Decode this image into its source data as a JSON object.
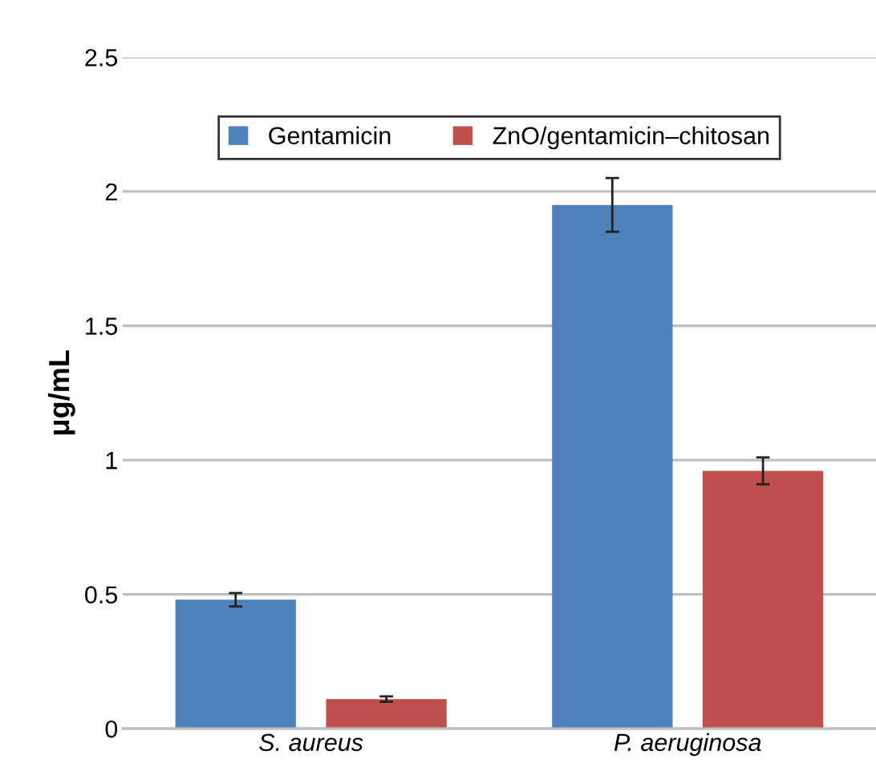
{
  "chart_data": {
    "type": "bar",
    "ylabel": "μg/mL",
    "categories": [
      "S. aureus",
      "P. aeruginosa"
    ],
    "series": [
      {
        "name": "Gentamicin",
        "color": "#4f81bd",
        "values": [
          0.48,
          1.95
        ],
        "errors": [
          0.025,
          0.1
        ]
      },
      {
        "name": "ZnO/gentamicin–chitosan",
        "color": "#c0504d",
        "values": [
          0.11,
          0.96
        ],
        "errors": [
          0.01,
          0.05
        ]
      }
    ],
    "ylim": [
      0,
      2.5
    ],
    "yticks": [
      0,
      0.5,
      1,
      1.5,
      2,
      2.5
    ],
    "grid": "y",
    "legend": "top"
  }
}
